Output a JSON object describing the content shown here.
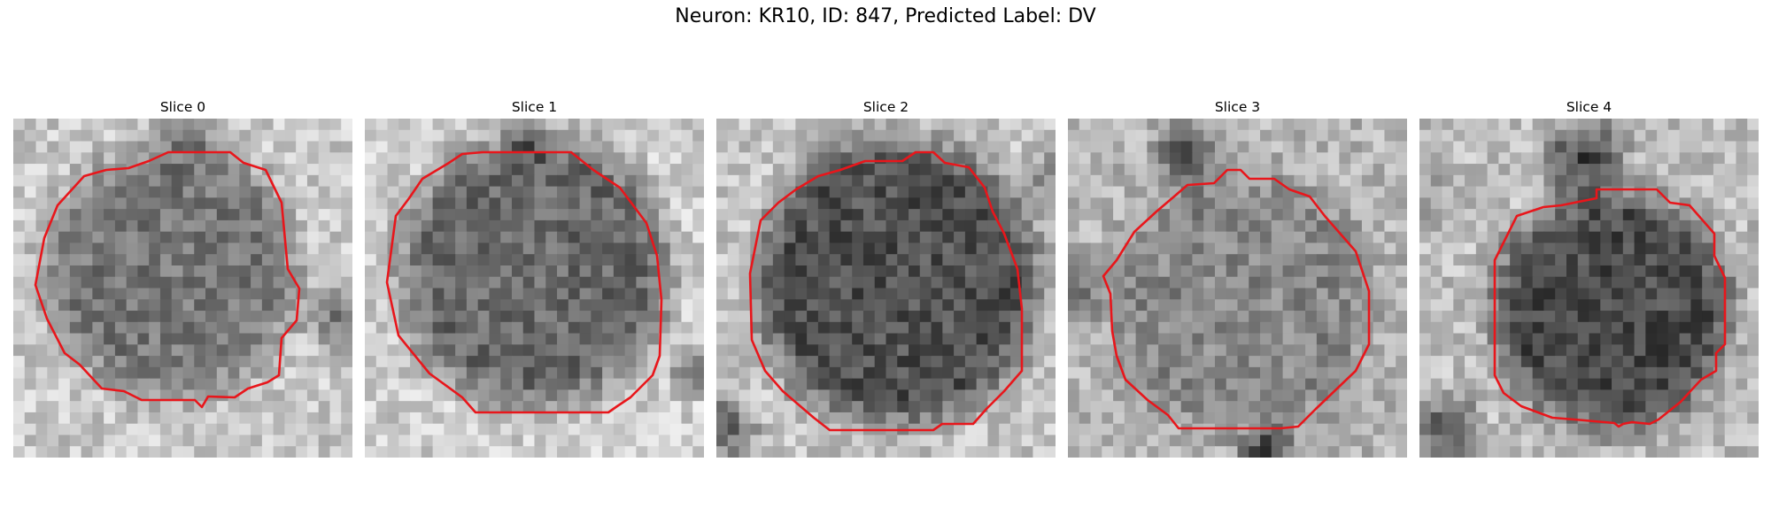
{
  "figure": {
    "title": "Neuron: KR10, ID: 847, Predicted Label: DV"
  },
  "panels": [
    {
      "title": "Slice 0"
    },
    {
      "title": "Slice 1"
    },
    {
      "title": "Slice 2"
    },
    {
      "title": "Slice 3"
    },
    {
      "title": "Slice 4"
    }
  ],
  "colors": {
    "contour": "#e8161b",
    "background": "#ffffff"
  }
}
